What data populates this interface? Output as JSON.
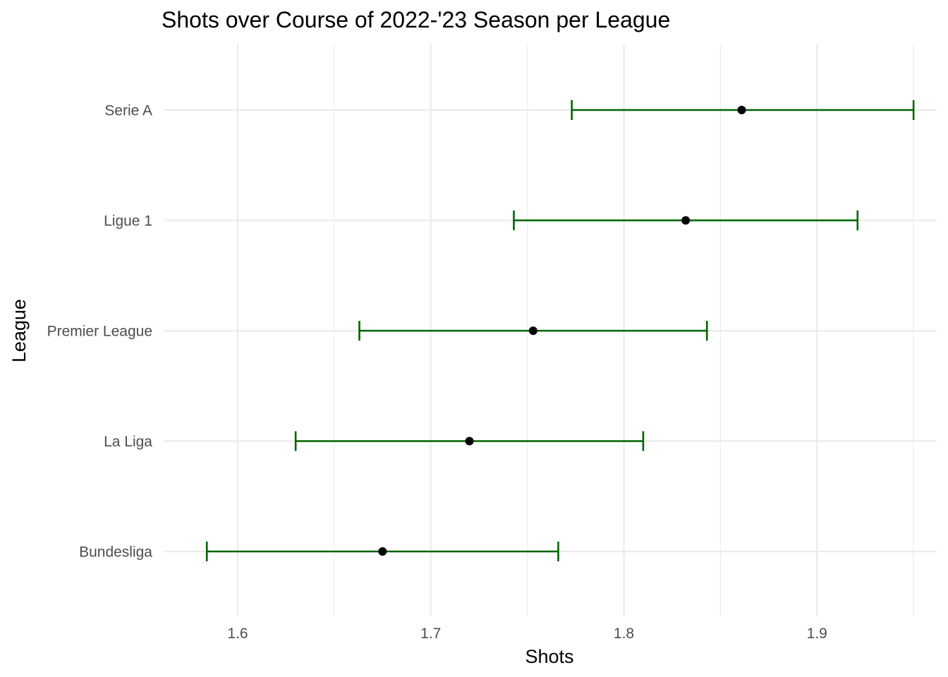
{
  "chart_data": {
    "type": "scatter",
    "subtype": "point-with-error-bars",
    "title": "Shots over Course of 2022-'23 Season per League",
    "xlabel": "Shots",
    "ylabel": "League",
    "xlim": [
      1.562,
      1.962
    ],
    "x_ticks": [
      1.6,
      1.7,
      1.8,
      1.9
    ],
    "x_tick_labels": [
      "1.6",
      "1.7",
      "1.8",
      "1.9"
    ],
    "categories": [
      "Bundesliga",
      "La Liga",
      "Premier League",
      "Ligue 1",
      "Serie A"
    ],
    "points": [
      {
        "category": "Bundesliga",
        "value": 1.675,
        "lower": 1.584,
        "upper": 1.766
      },
      {
        "category": "La Liga",
        "value": 1.72,
        "lower": 1.63,
        "upper": 1.81
      },
      {
        "category": "Premier League",
        "value": 1.753,
        "lower": 1.663,
        "upper": 1.843
      },
      {
        "category": "Ligue 1",
        "value": 1.832,
        "lower": 1.743,
        "upper": 1.921
      },
      {
        "category": "Serie A",
        "value": 1.861,
        "lower": 1.773,
        "upper": 1.95
      }
    ],
    "grid": true,
    "legend": "none",
    "colors": {
      "point": "#000000",
      "errorbar": "#006400",
      "grid": "#ebebeb",
      "tick_text": "#4d4d4d"
    }
  }
}
